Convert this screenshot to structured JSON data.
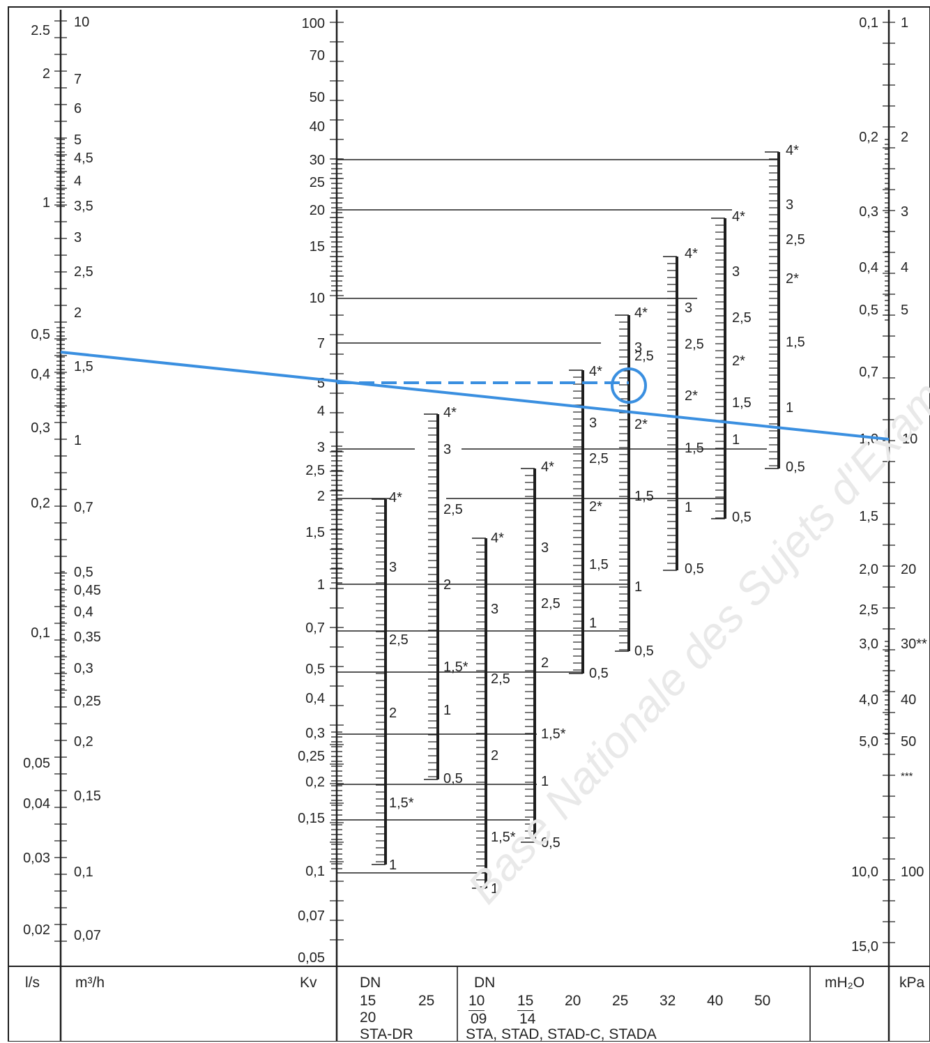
{
  "nomogram": {
    "scales": {
      "ls": {
        "labels": [
          "2.5",
          "2",
          "1",
          "0,5",
          "0,4",
          "0,3",
          "0,2",
          "0,1",
          "0,05",
          "0,04",
          "0,03",
          "0,02"
        ]
      },
      "m3h": {
        "labels": [
          "10",
          "7",
          "6",
          "5",
          "4,5",
          "4",
          "3,5",
          "3",
          "2,5",
          "2",
          "1,5",
          "1",
          "0,7",
          "0,5",
          "0,45",
          "0,4",
          "0,35",
          "0,3",
          "0,25",
          "0,2",
          "0,15",
          "0,1",
          "0,07"
        ]
      },
      "kv": {
        "labels": [
          "100",
          "70",
          "50",
          "40",
          "30",
          "25",
          "20",
          "15",
          "10",
          "7",
          "5",
          "4",
          "3",
          "2,5",
          "2",
          "1,5",
          "1",
          "0,7",
          "0,5",
          "0,4",
          "0,3",
          "0,25",
          "0,2",
          "0,15",
          "0,1",
          "0,07",
          "0,05"
        ]
      },
      "mh2o": {
        "labels": [
          "0,1",
          "0,2",
          "0,3",
          "0,4",
          "0,5",
          "0,7",
          "1,0",
          "1,5",
          "2,0",
          "2,5",
          "3,0",
          "4,0",
          "5,0",
          "10,0",
          "15,0"
        ]
      },
      "kpa": {
        "labels": [
          "1",
          "2",
          "3",
          "4",
          "5",
          "10",
          "20",
          "30**",
          "40",
          "50",
          "***",
          "100"
        ]
      }
    },
    "valve_scales": [
      {
        "labels": [
          "4*",
          "3",
          "2,5",
          "2",
          "1,5*",
          "1"
        ]
      },
      {
        "labels": [
          "4*",
          "3",
          "2,5",
          "2",
          "1,5*",
          "1",
          "0,5"
        ]
      },
      {
        "labels": [
          "4*",
          "3",
          "2,5",
          "2",
          "1,5*",
          "1"
        ]
      },
      {
        "labels": [
          "4*",
          "3",
          "2,5",
          "2",
          "1,5*",
          "1",
          "0,5"
        ]
      },
      {
        "labels": [
          "4*",
          "3",
          "2,5",
          "2*",
          "1,5",
          "1",
          "0,5"
        ]
      },
      {
        "labels": [
          "4*",
          "3",
          "2,5",
          "2*",
          "1,5",
          "1",
          "0,5"
        ]
      },
      {
        "labels": [
          "4*",
          "3",
          "2,5",
          "2*",
          "1,5",
          "1",
          "0,5"
        ]
      },
      {
        "labels": [
          "4*",
          "3",
          "2,5",
          "2*",
          "1,5",
          "1",
          "0,5"
        ]
      },
      {
        "labels": [
          "4*",
          "3",
          "2,5",
          "2*",
          "1,5",
          "1",
          "0,5"
        ]
      }
    ],
    "watermark": "Base Nationale des Sujets d'Exam",
    "highlight_color": "#3a8fe0",
    "line_color": "#1e1e1e"
  },
  "footer": {
    "units": {
      "ls": "l/s",
      "m3h": "m³/h",
      "kv": "Kv",
      "mh2o": "mH₂O",
      "kpa": "kPa"
    },
    "group1": {
      "dn": "DN",
      "sizes": [
        "15",
        "25",
        "20"
      ],
      "valve": "STA-DR"
    },
    "group2": {
      "dn": "DN",
      "sizes": [
        "10",
        "15",
        "20",
        "25",
        "32",
        "40",
        "50"
      ],
      "sub": [
        "09",
        "14"
      ],
      "valve": "STA, STAD, STAD-C, STADA"
    }
  }
}
